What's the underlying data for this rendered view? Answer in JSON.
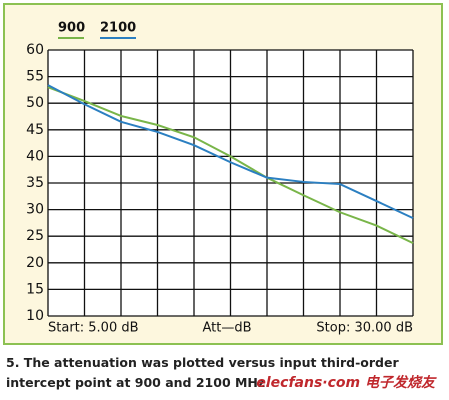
{
  "chart_data": {
    "type": "line",
    "x": [
      5,
      7.5,
      10,
      12.5,
      15,
      17.5,
      20,
      22.5,
      25,
      27.5,
      30
    ],
    "series": [
      {
        "name": "900",
        "color": "#79b549",
        "values": [
          53,
          50.4,
          47.6,
          45.9,
          43.6,
          40,
          36,
          32.7,
          29.5,
          27,
          23.7
        ]
      },
      {
        "name": "2100",
        "color": "#2b7fc1",
        "values": [
          53.4,
          49.8,
          46.5,
          44.6,
          42.1,
          38.9,
          36,
          35.2,
          34.8,
          31.6,
          28.4
        ]
      }
    ],
    "xlim": [
      5,
      30
    ],
    "xticks": [
      5,
      7.5,
      10,
      12.5,
      15,
      17.5,
      20,
      22.5,
      25,
      27.5,
      30
    ],
    "ylim": [
      10,
      60
    ],
    "yticks": [
      10,
      15,
      20,
      25,
      30,
      35,
      40,
      45,
      50,
      55,
      60
    ],
    "grid": true,
    "x_start_label": "Start: 5.00 dB",
    "x_axis_label": "Att—dB",
    "x_stop_label": "Stop: 30.00 dB",
    "caption": "5. The attenuation was plotted versus input third-order intercept point at 900 and 2100 MHz.",
    "watermark": "elecfans·com 电子发烧友"
  }
}
